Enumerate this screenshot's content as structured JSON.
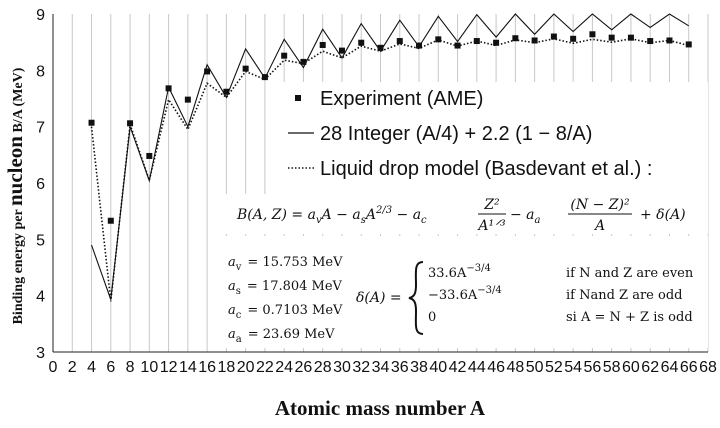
{
  "chart_data": {
    "type": "line",
    "xlabel": "Atomic mass number A",
    "ylabel_parts": [
      "Binding energy per ",
      "nucleon",
      " B/A (MeV)"
    ],
    "xlim": [
      0,
      68
    ],
    "ylim": [
      3,
      9
    ],
    "x_ticks": [
      0,
      2,
      4,
      6,
      8,
      10,
      12,
      14,
      16,
      18,
      20,
      22,
      24,
      26,
      28,
      30,
      32,
      34,
      36,
      38,
      40,
      42,
      44,
      46,
      48,
      50,
      52,
      54,
      56,
      58,
      60,
      62,
      64,
      66,
      68
    ],
    "y_ticks": [
      3,
      4,
      5,
      6,
      7,
      8,
      9
    ],
    "grid": "vertical",
    "x": [
      4,
      6,
      8,
      10,
      12,
      14,
      16,
      18,
      20,
      22,
      24,
      26,
      28,
      30,
      32,
      34,
      36,
      38,
      40,
      42,
      44,
      46,
      48,
      50,
      52,
      54,
      56,
      58,
      60,
      62,
      64,
      66
    ],
    "series": [
      {
        "name": "Experiment (AME)",
        "style": "marker",
        "color": "#111111",
        "values": [
          7.07,
          5.33,
          7.06,
          6.48,
          7.68,
          7.48,
          7.98,
          7.62,
          8.03,
          7.88,
          8.26,
          8.15,
          8.45,
          8.35,
          8.49,
          8.4,
          8.52,
          8.44,
          8.55,
          8.44,
          8.52,
          8.49,
          8.57,
          8.53,
          8.6,
          8.56,
          8.64,
          8.58,
          8.58,
          8.52,
          8.53,
          8.46
        ]
      },
      {
        "name": "28 Integer (A/4) + 2.2 (1 − 8/A)",
        "style": "solid",
        "color": "#111111",
        "values": [
          4.9,
          3.93,
          7.0,
          6.04,
          7.7,
          7.0,
          8.1,
          7.52,
          8.38,
          7.86,
          8.55,
          8.05,
          8.73,
          8.22,
          8.83,
          8.34,
          8.89,
          8.42,
          8.96,
          8.51,
          8.99,
          8.59,
          9.0,
          8.64,
          9.0,
          8.69,
          9.0,
          8.72,
          9.0,
          8.76,
          9.0,
          8.79
        ]
      },
      {
        "name": "Liquid drop model (Basdevant et al.) :",
        "style": "dotted",
        "color": "#111111",
        "values": [
          7.0,
          3.9,
          7.04,
          6.05,
          7.48,
          6.95,
          7.77,
          7.52,
          7.98,
          7.84,
          8.18,
          8.12,
          8.34,
          8.22,
          8.43,
          8.34,
          8.47,
          8.39,
          8.54,
          8.43,
          8.52,
          8.44,
          8.54,
          8.49,
          8.56,
          8.48,
          8.55,
          8.5,
          8.56,
          8.49,
          8.53,
          8.44
        ]
      }
    ],
    "legend_position": "center-right"
  },
  "formula": {
    "main": "B(A,Z)  =  aᵥA  −  aₛA²ᐟ³  −  a꜀ Z² / A¹ᐟ³  −  aₐ (N − Z)² / A  +  δ(A)",
    "lhs": "B(A, Z)  =  ",
    "t1": "a",
    "t1sub": "v",
    "t1b": "A  −  a",
    "t2sub": "s",
    "t2b": "A",
    "t2sup": "2/3",
    "t2c": "  −  a",
    "t3sub": "c",
    "frac1_num": "Z²",
    "frac1_den": "A¹ᐟ³",
    "t4": "  −  a",
    "t4sub": "a",
    "frac2_num": "(N − Z)²",
    "frac2_den": "A",
    "t5": "+  δ(A)"
  },
  "constants": [
    {
      "sym": "a",
      "sub": "v",
      "value": "=  15.753 MeV"
    },
    {
      "sym": "a",
      "sub": "s",
      "value": "=  17.804 MeV"
    },
    {
      "sym": "a",
      "sub": "c",
      "value": "=  0.7103 MeV"
    },
    {
      "sym": "a",
      "sub": "a",
      "value": "=  23.69 MeV"
    }
  ],
  "delta": {
    "lhs": "δ(A) =",
    "cases": [
      {
        "expr": "33.6A",
        "sup": "−3/4",
        "cond": "if N and Z are even"
      },
      {
        "expr": "−33.6A",
        "sup": "−3/4",
        "cond": "if Nand Z are odd"
      },
      {
        "expr": "0",
        "sup": "",
        "cond": "si A = N + Z is odd"
      }
    ]
  }
}
